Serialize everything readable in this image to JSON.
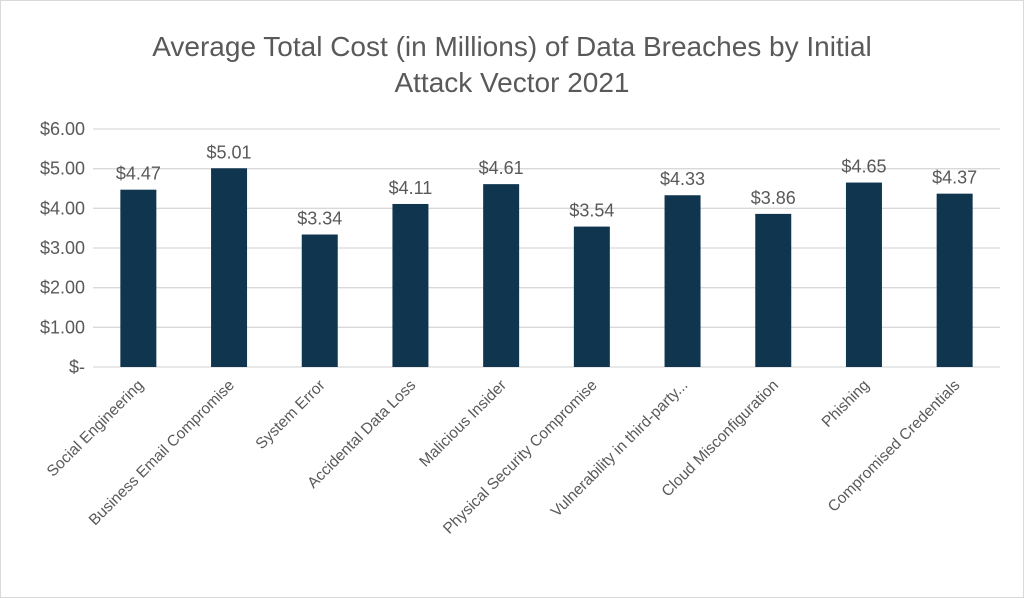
{
  "chart_data": {
    "type": "bar",
    "title_lines": [
      "Average Total Cost (in Millions) of Data Breaches by Initial",
      "Attack Vector 2021"
    ],
    "categories": [
      "Social Engineering",
      "Business Email Compromise",
      "System Error",
      "Accidental Data Loss",
      "Malicious Insider",
      "Physical Security Compromise",
      "Vulnerability in third-party...",
      "Cloud Misconfiguration",
      "Phishing",
      "Compromised Credentials"
    ],
    "values": [
      4.47,
      5.01,
      3.34,
      4.11,
      4.61,
      3.54,
      4.33,
      3.86,
      4.65,
      4.37
    ],
    "data_labels": [
      "$4.47",
      "$5.01",
      "$3.34",
      "$4.11",
      "$4.61",
      "$3.54",
      "$4.33",
      "$3.86",
      "$4.65",
      "$4.37"
    ],
    "y_ticks": [
      0,
      1,
      2,
      3,
      4,
      5,
      6
    ],
    "y_tick_labels": [
      "$-",
      "$1.00",
      "$2.00",
      "$3.00",
      "$4.00",
      "$5.00",
      "$6.00"
    ],
    "ylim": [
      0,
      6
    ],
    "grid": true,
    "bar_color": "#10364f",
    "text_color": "#595959",
    "grid_color": "#d9d9d9"
  }
}
